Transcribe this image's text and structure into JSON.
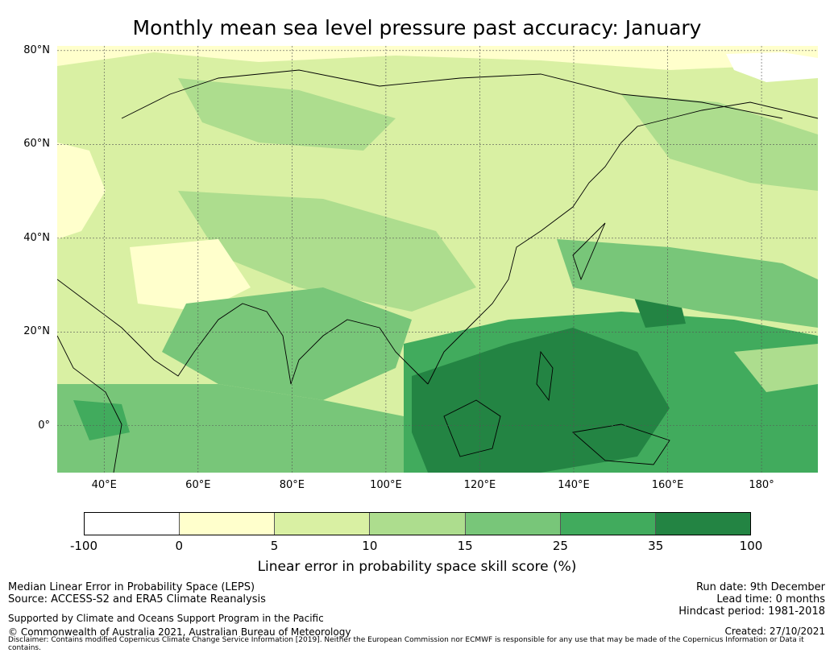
{
  "title": "Monthly mean sea level pressure past accuracy: January",
  "map": {
    "lat_labels": [
      "80°N",
      "60°N",
      "40°N",
      "20°N",
      "0°"
    ],
    "lon_labels": [
      "40°E",
      "60°E",
      "80°E",
      "100°E",
      "120°E",
      "140°E",
      "160°E",
      "180°"
    ],
    "lat_values": [
      80,
      60,
      40,
      20,
      0
    ],
    "lon_values": [
      40,
      60,
      80,
      100,
      120,
      140,
      160,
      180
    ],
    "lon_range": [
      30,
      192
    ],
    "lat_range": [
      -10,
      81
    ],
    "land_color": "#ffffff",
    "grid_color": "#555555"
  },
  "colorbar": {
    "ticks": [
      "-100",
      "0",
      "5",
      "10",
      "15",
      "25",
      "35",
      "100"
    ],
    "colors": [
      "#ffffff",
      "#ffffcc",
      "#d9f0a3",
      "#addd8e",
      "#78c679",
      "#41ab5d",
      "#238443"
    ],
    "label": "Linear error in probability space skill score (%)"
  },
  "footer": {
    "left": {
      "line1": "Median Linear Error in Probability Space (LEPS)",
      "line2": "Source: ACCESS-S2 and ERA5 Climate Reanalysis",
      "line3": "Supported by Climate and Oceans Support Program in the Pacific",
      "line4": "© Commonwealth of Australia 2021, Australian Bureau of Meteorology"
    },
    "right": {
      "run_date": "Run date: 9th December",
      "lead_time": "Lead time: 0 months",
      "hindcast": "Hindcast period: 1981-2018",
      "created": "Created: 27/10/2021"
    },
    "disclaimer": "Disclaimer: Contains modified Copernicus Climate Change Service Information [2019]. Neither the European Commission nor ECMWF is responsible for any use that may be made of the Copernicus Information or Data it contains."
  }
}
